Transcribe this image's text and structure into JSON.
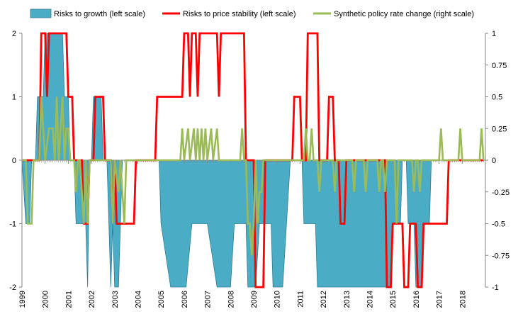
{
  "chart_data": {
    "type": "area",
    "x_start": "1999-01",
    "x_end": "2018-12",
    "x_tick_labels": [
      "1999",
      "2000",
      "2001",
      "2002",
      "2003",
      "2004",
      "2005",
      "2006",
      "2007",
      "2008",
      "2009",
      "2010",
      "2011",
      "2012",
      "2013",
      "2014",
      "2015",
      "2016",
      "2017",
      "2018"
    ],
    "y_left_ticks": [
      "-2",
      "-1",
      "0",
      "1",
      "2"
    ],
    "y_right_ticks": [
      "-1",
      "-0.75",
      "-0.5",
      "-0.25",
      "0",
      "0.25",
      "0.5",
      "0.75",
      "1"
    ],
    "ylim_left": [
      -2,
      2
    ],
    "ylim_right": [
      -1,
      1
    ],
    "legend_position": "top",
    "grid": false,
    "series": [
      {
        "name": "Risks to growth (left scale)",
        "kind": "area",
        "axis": "left",
        "color": "#4BACC6",
        "points": [
          [
            "1999-01",
            0
          ],
          [
            "1999-03",
            -1
          ],
          [
            "1999-05",
            -1
          ],
          [
            "1999-06",
            0
          ],
          [
            "1999-08",
            0
          ],
          [
            "1999-09",
            1
          ],
          [
            "1999-12",
            1
          ],
          [
            "2000-01",
            2
          ],
          [
            "2000-10",
            2
          ],
          [
            "2000-11",
            1
          ],
          [
            "2001-01",
            1
          ],
          [
            "2001-02",
            0
          ],
          [
            "2001-04",
            0
          ],
          [
            "2001-05",
            -1
          ],
          [
            "2001-10",
            -1
          ],
          [
            "2001-11",
            -2
          ],
          [
            "2001-12",
            0
          ],
          [
            "2002-01",
            0
          ],
          [
            "2002-02",
            1
          ],
          [
            "2002-06",
            1
          ],
          [
            "2002-07",
            0
          ],
          [
            "2002-09",
            0
          ],
          [
            "2002-10",
            -1
          ],
          [
            "2002-11",
            -2
          ],
          [
            "2002-12",
            -1
          ],
          [
            "2003-01",
            -2
          ],
          [
            "2003-03",
            -2
          ],
          [
            "2003-04",
            -1
          ],
          [
            "2003-05",
            0
          ],
          [
            "2004-12",
            0
          ],
          [
            "2005-01",
            -1
          ],
          [
            "2005-06",
            -2
          ],
          [
            "2006-02",
            -2
          ],
          [
            "2006-05",
            -1
          ],
          [
            "2007-01",
            -1
          ],
          [
            "2007-06",
            -2
          ],
          [
            "2008-01",
            -2
          ],
          [
            "2008-03",
            -1
          ],
          [
            "2008-09",
            -1
          ],
          [
            "2008-10",
            -2
          ],
          [
            "2009-02",
            -2
          ],
          [
            "2009-04",
            -1
          ],
          [
            "2009-10",
            -1
          ],
          [
            "2009-11",
            -2
          ],
          [
            "2010-04",
            -2
          ],
          [
            "2010-06",
            -1
          ],
          [
            "2010-08",
            0
          ],
          [
            "2011-02",
            0
          ],
          [
            "2011-03",
            -1
          ],
          [
            "2011-09",
            -1
          ],
          [
            "2011-10",
            -2
          ],
          [
            "2014-12",
            -2
          ],
          [
            "2015-01",
            -1
          ],
          [
            "2015-05",
            -1
          ],
          [
            "2015-06",
            0
          ],
          [
            "2015-08",
            0
          ],
          [
            "2015-09",
            -1
          ],
          [
            "2015-12",
            -1
          ],
          [
            "2016-01",
            -2
          ],
          [
            "2016-04",
            -2
          ],
          [
            "2016-05",
            -1
          ],
          [
            "2016-08",
            -1
          ],
          [
            "2016-09",
            0
          ],
          [
            "2018-12",
            0
          ]
        ]
      },
      {
        "name": "Risks to price stability (left scale)",
        "kind": "line",
        "axis": "left",
        "color": "#FF0000",
        "points": [
          [
            "1999-01",
            0
          ],
          [
            "1999-10",
            0
          ],
          [
            "1999-11",
            2
          ],
          [
            "2000-01",
            2
          ],
          [
            "2000-02",
            1
          ],
          [
            "2000-03",
            2
          ],
          [
            "2000-12",
            2
          ],
          [
            "2001-01",
            1
          ],
          [
            "2001-03",
            1
          ],
          [
            "2001-04",
            0
          ],
          [
            "2001-08",
            0
          ],
          [
            "2001-09",
            -1
          ],
          [
            "2001-11",
            -1
          ],
          [
            "2001-12",
            0
          ],
          [
            "2002-02",
            0
          ],
          [
            "2002-03",
            1
          ],
          [
            "2002-07",
            1
          ],
          [
            "2002-08",
            0
          ],
          [
            "2002-11",
            0
          ],
          [
            "2002-12",
            -1
          ],
          [
            "2003-01",
            0
          ],
          [
            "2003-02",
            -1
          ],
          [
            "2003-11",
            -1
          ],
          [
            "2003-12",
            0
          ],
          [
            "2004-10",
            0
          ],
          [
            "2004-11",
            1
          ],
          [
            "2005-12",
            1
          ],
          [
            "2006-01",
            2
          ],
          [
            "2006-03",
            2
          ],
          [
            "2006-04",
            1
          ],
          [
            "2006-05",
            2
          ],
          [
            "2006-07",
            2
          ],
          [
            "2006-08",
            1
          ],
          [
            "2006-09",
            2
          ],
          [
            "2007-06",
            2
          ],
          [
            "2007-07",
            1
          ],
          [
            "2007-08",
            2
          ],
          [
            "2008-08",
            2
          ],
          [
            "2008-09",
            0
          ],
          [
            "2009-01",
            0
          ],
          [
            "2009-02",
            -2
          ],
          [
            "2009-06",
            -2
          ],
          [
            "2009-07",
            0
          ],
          [
            "2010-09",
            0
          ],
          [
            "2010-10",
            1
          ],
          [
            "2011-01",
            1
          ],
          [
            "2011-02",
            0
          ],
          [
            "2011-04",
            0
          ],
          [
            "2011-05",
            2
          ],
          [
            "2011-10",
            2
          ],
          [
            "2011-11",
            0
          ],
          [
            "2012-03",
            0
          ],
          [
            "2012-04",
            1
          ],
          [
            "2012-06",
            1
          ],
          [
            "2012-07",
            0
          ],
          [
            "2012-09",
            0
          ],
          [
            "2012-10",
            -1
          ],
          [
            "2012-12",
            -1
          ],
          [
            "2013-01",
            0
          ],
          [
            "2014-09",
            0
          ],
          [
            "2014-10",
            -2
          ],
          [
            "2014-12",
            -2
          ],
          [
            "2015-01",
            -1
          ],
          [
            "2015-06",
            -1
          ],
          [
            "2015-07",
            -2
          ],
          [
            "2015-09",
            -2
          ],
          [
            "2015-10",
            -1
          ],
          [
            "2016-01",
            -1
          ],
          [
            "2016-02",
            -2
          ],
          [
            "2016-04",
            -2
          ],
          [
            "2016-05",
            -1
          ],
          [
            "2017-05",
            -1
          ],
          [
            "2017-06",
            0
          ],
          [
            "2018-12",
            0
          ]
        ]
      },
      {
        "name": "Synthetic policy rate change (right scale)",
        "kind": "line",
        "axis": "right",
        "color": "#9BBB59",
        "points": [
          [
            "1999-01",
            0
          ],
          [
            "1999-03",
            0
          ],
          [
            "1999-04",
            -0.5
          ],
          [
            "1999-06",
            -0.5
          ],
          [
            "1999-07",
            0
          ],
          [
            "1999-10",
            0
          ],
          [
            "1999-11",
            0.5
          ],
          [
            "2000-01",
            0
          ],
          [
            "2000-03",
            0.25
          ],
          [
            "2000-05",
            0.25
          ],
          [
            "2000-06",
            0
          ],
          [
            "2000-07",
            0.5
          ],
          [
            "2000-08",
            0
          ],
          [
            "2000-10",
            0.5
          ],
          [
            "2000-11",
            0
          ],
          [
            "2000-12",
            0.25
          ],
          [
            "2001-01",
            0.25
          ],
          [
            "2001-02",
            0
          ],
          [
            "2001-04",
            0
          ],
          [
            "2001-05",
            -0.25
          ],
          [
            "2001-06",
            0
          ],
          [
            "2001-07",
            0
          ],
          [
            "2001-08",
            -0.25
          ],
          [
            "2001-09",
            -0.5
          ],
          [
            "2001-10",
            0
          ],
          [
            "2001-11",
            -0.5
          ],
          [
            "2001-12",
            0
          ],
          [
            "2002-11",
            0
          ],
          [
            "2002-12",
            -0.5
          ],
          [
            "2003-01",
            0
          ],
          [
            "2003-03",
            -0.25
          ],
          [
            "2003-04",
            0
          ],
          [
            "2003-06",
            -0.5
          ],
          [
            "2003-07",
            0
          ],
          [
            "2005-11",
            0
          ],
          [
            "2005-12",
            0.25
          ],
          [
            "2006-01",
            0
          ],
          [
            "2006-03",
            0.25
          ],
          [
            "2006-04",
            0
          ],
          [
            "2006-06",
            0.25
          ],
          [
            "2006-07",
            0
          ],
          [
            "2006-08",
            0.25
          ],
          [
            "2006-09",
            0
          ],
          [
            "2006-10",
            0.25
          ],
          [
            "2006-11",
            0
          ],
          [
            "2006-12",
            0.25
          ],
          [
            "2007-01",
            0
          ],
          [
            "2007-03",
            0.25
          ],
          [
            "2007-04",
            0
          ],
          [
            "2007-06",
            0.25
          ],
          [
            "2007-07",
            0
          ],
          [
            "2008-06",
            0
          ],
          [
            "2008-07",
            0.25
          ],
          [
            "2008-08",
            0
          ],
          [
            "2008-09",
            0
          ],
          [
            "2008-10",
            -0.5
          ],
          [
            "2008-11",
            -0.5
          ],
          [
            "2008-12",
            -0.75
          ],
          [
            "2009-01",
            -0.5
          ],
          [
            "2009-02",
            0
          ],
          [
            "2009-03",
            -0.5
          ],
          [
            "2009-04",
            -0.25
          ],
          [
            "2009-05",
            -0.25
          ],
          [
            "2009-06",
            0
          ],
          [
            "2011-03",
            0
          ],
          [
            "2011-04",
            0.25
          ],
          [
            "2011-05",
            0
          ],
          [
            "2011-06",
            0
          ],
          [
            "2011-07",
            0.25
          ],
          [
            "2011-08",
            0
          ],
          [
            "2011-10",
            0
          ],
          [
            "2011-11",
            -0.25
          ],
          [
            "2011-12",
            0
          ],
          [
            "2012-02",
            0
          ],
          [
            "2012-03",
            0
          ],
          [
            "2012-06",
            0
          ],
          [
            "2012-07",
            -0.25
          ],
          [
            "2012-08",
            0
          ],
          [
            "2013-04",
            0
          ],
          [
            "2013-05",
            -0.25
          ],
          [
            "2013-06",
            0
          ],
          [
            "2013-10",
            0
          ],
          [
            "2013-11",
            -0.25
          ],
          [
            "2013-12",
            0
          ],
          [
            "2014-05",
            0
          ],
          [
            "2014-06",
            -0.25
          ],
          [
            "2014-07",
            0
          ],
          [
            "2014-08",
            0
          ],
          [
            "2014-09",
            -0.25
          ],
          [
            "2014-10",
            0
          ],
          [
            "2015-02",
            0
          ],
          [
            "2015-03",
            -0.5
          ],
          [
            "2015-04",
            0
          ],
          [
            "2015-11",
            0
          ],
          [
            "2015-12",
            -0.25
          ],
          [
            "2016-01",
            0
          ],
          [
            "2016-02",
            0
          ],
          [
            "2016-03",
            -0.25
          ],
          [
            "2016-04",
            0
          ],
          [
            "2016-09",
            0
          ],
          [
            "2017-01",
            0
          ],
          [
            "2017-02",
            0.25
          ],
          [
            "2017-03",
            0
          ],
          [
            "2017-11",
            0
          ],
          [
            "2017-12",
            0.25
          ],
          [
            "2018-01",
            0
          ],
          [
            "2018-10",
            0
          ],
          [
            "2018-11",
            0.25
          ],
          [
            "2018-12",
            0
          ]
        ]
      }
    ]
  }
}
